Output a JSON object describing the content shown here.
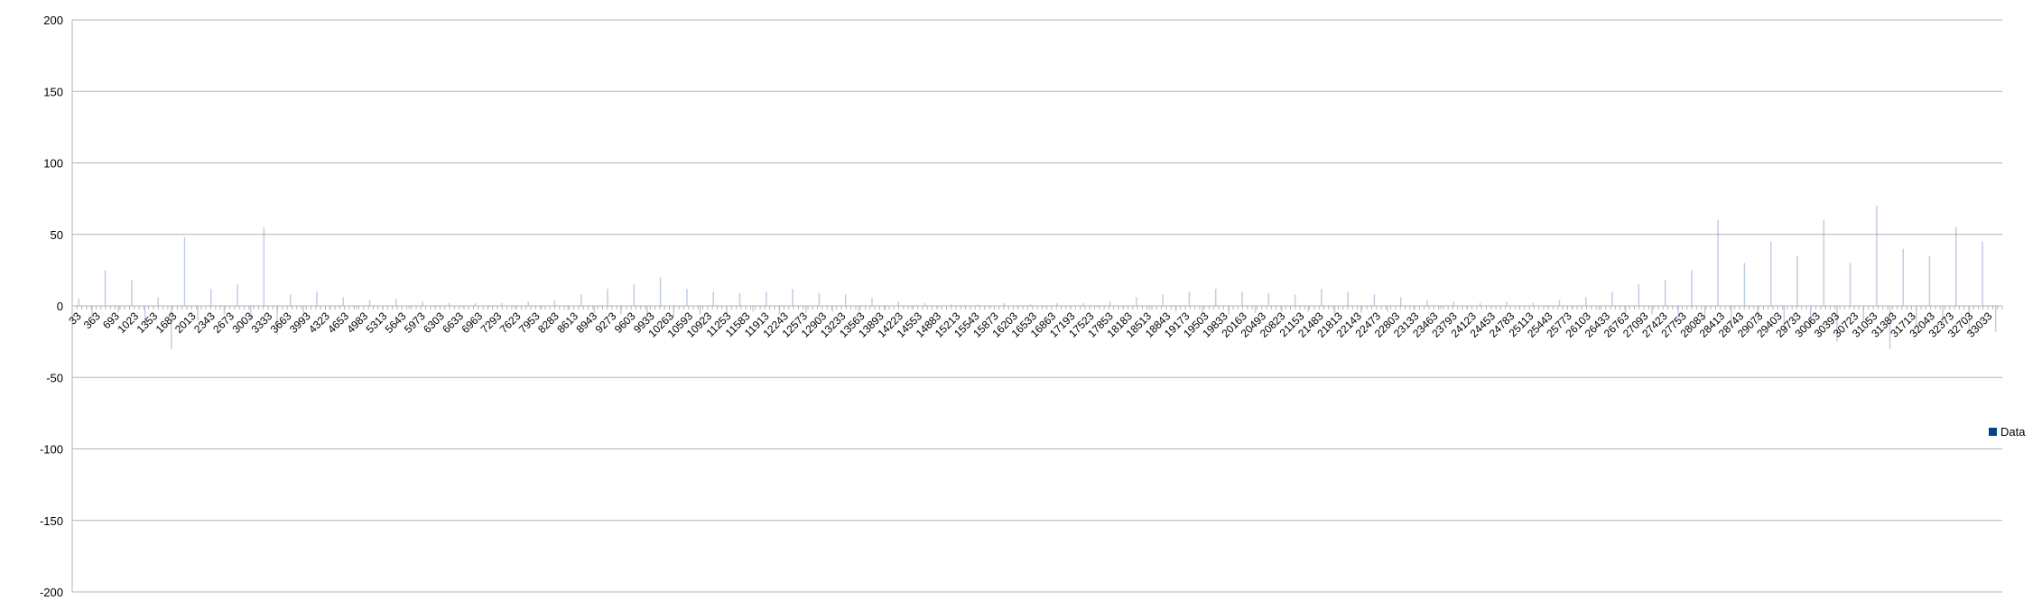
{
  "chart_data": {
    "type": "bar",
    "ylim": [
      -200,
      200
    ],
    "yticks": [
      200,
      150,
      100,
      50,
      0,
      -50,
      -100,
      -150,
      -200
    ],
    "x_start": 33,
    "x_end": 32873,
    "x_label_step": 330,
    "grid": "horizontal",
    "legend_position": "right",
    "series": [
      {
        "name": "Data",
        "color": "#004586",
        "values_sampled_every": 330,
        "values": [
          5,
          -8,
          25,
          -4,
          18,
          -12,
          6,
          -30,
          48,
          -10,
          12,
          -6,
          15,
          -9,
          55,
          -20,
          8,
          -5,
          10,
          -3,
          6,
          -2,
          4,
          -3,
          5,
          -2,
          3,
          -1,
          2,
          -1,
          2,
          -1,
          2,
          -2,
          3,
          -2,
          4,
          -3,
          8,
          -5,
          12,
          -6,
          15,
          -7,
          20,
          -8,
          12,
          -6,
          10,
          -5,
          9,
          -4,
          10,
          -6,
          12,
          -5,
          9,
          -4,
          8,
          -4,
          6,
          -3,
          3,
          -2,
          2,
          -1,
          1,
          -1,
          1,
          -1,
          2,
          -1,
          1,
          -1,
          2,
          -1,
          2,
          -1,
          3,
          -2,
          6,
          -3,
          8,
          -4,
          10,
          -5,
          12,
          -6,
          10,
          -5,
          9,
          -4,
          8,
          -4,
          12,
          -6,
          10,
          -5,
          8,
          -4,
          6,
          -3,
          4,
          -2,
          3,
          -2,
          2,
          -1,
          3,
          -2,
          2,
          -1,
          4,
          -2,
          6,
          -3,
          10,
          -5,
          15,
          -6,
          18,
          -8,
          25,
          -10,
          60,
          -15,
          30,
          -12,
          45,
          -20,
          35,
          -15,
          60,
          -25,
          30,
          -10,
          70,
          -30,
          40,
          -15,
          35,
          -12,
          55,
          -20,
          45,
          -18
        ]
      }
    ]
  }
}
